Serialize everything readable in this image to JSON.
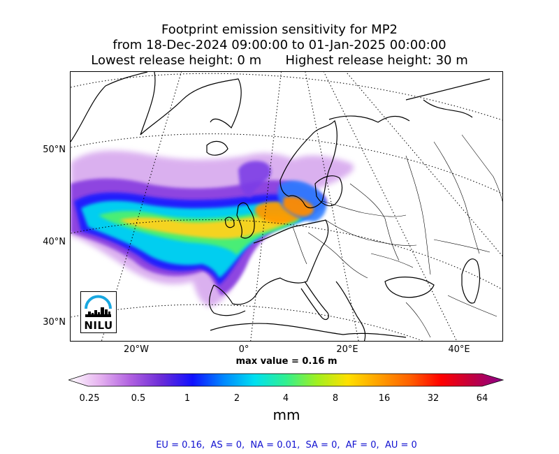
{
  "title": {
    "line1": "Footprint emission sensitivity for MP2",
    "line2": "from 18-Dec-2024 09:00:00 to 01-Jan-2025 00:00:00",
    "line3": "Lowest release height: 0 m      Highest release height: 30 m"
  },
  "map": {
    "lat_labels": [
      "50°N",
      "40°N",
      "30°N"
    ],
    "lon_labels": [
      "20°W",
      "0°",
      "20°E",
      "40°E"
    ],
    "gridlines": "dotted"
  },
  "logo": {
    "text": "NILU"
  },
  "max_value_label": "max value = 0.16 m",
  "colorbar": {
    "ticks": [
      "0.25",
      "0.5",
      "1",
      "2",
      "4",
      "8",
      "16",
      "32",
      "64"
    ],
    "unit": "mm",
    "colors": [
      "#ffffff",
      "#e6b3f0",
      "#b060e0",
      "#6a2bd8",
      "#1010ff",
      "#0088ff",
      "#00e0f0",
      "#30f090",
      "#a0f020",
      "#ffe000",
      "#ffa000",
      "#ff6000",
      "#ff0000",
      "#c00040",
      "#8b008b"
    ]
  },
  "region_summary": "EU = 0.16,  AS = 0,  NA = 0.01,  SA = 0,  AF = 0,  AU = 0"
}
